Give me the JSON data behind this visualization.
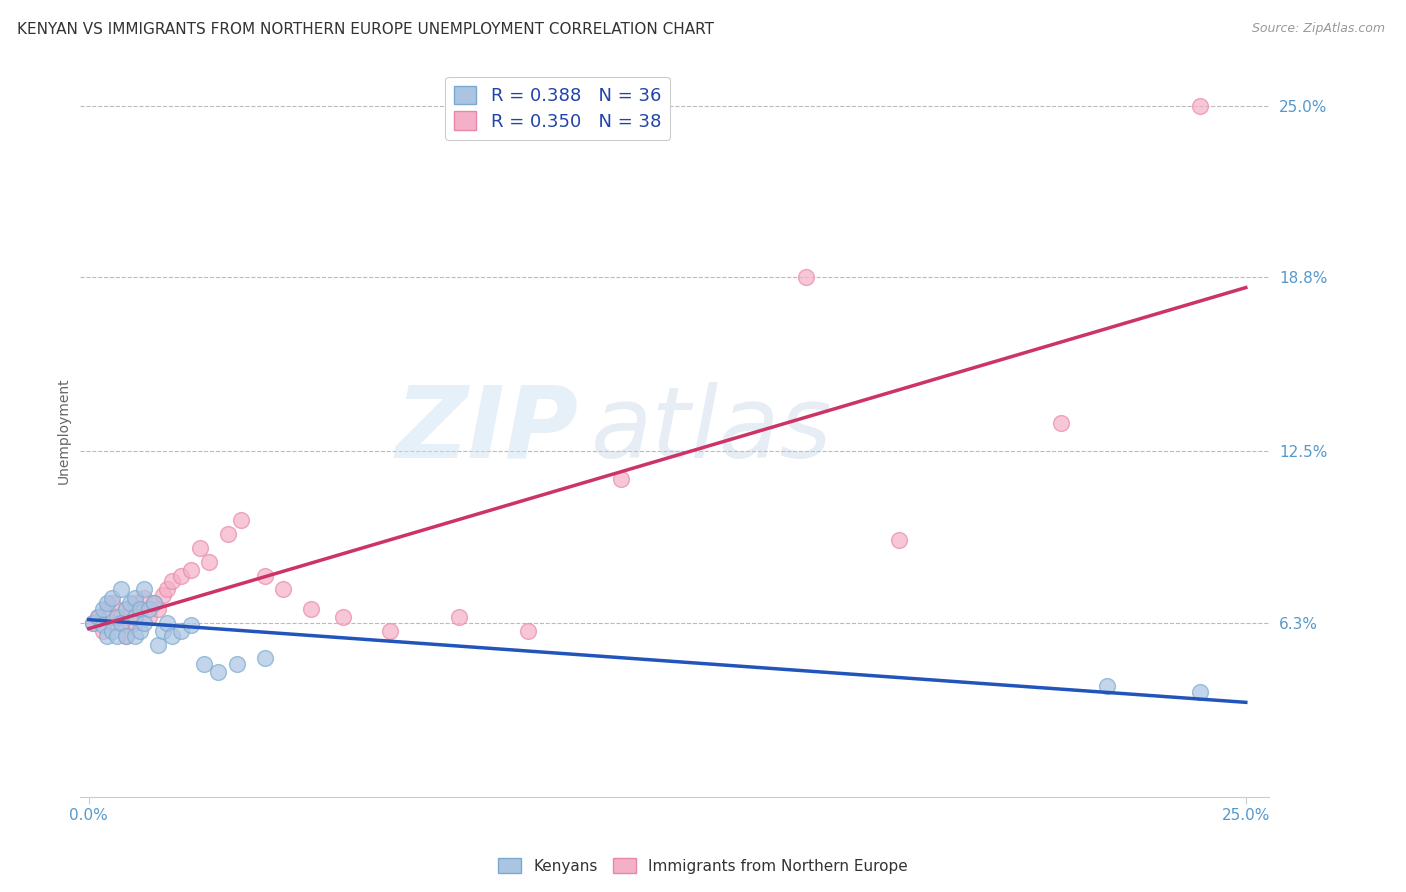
{
  "title": "KENYAN VS IMMIGRANTS FROM NORTHERN EUROPE UNEMPLOYMENT CORRELATION CHART",
  "source": "Source: ZipAtlas.com",
  "ylabel": "Unemployment",
  "xlim": [
    -0.002,
    0.255
  ],
  "ylim": [
    0.0,
    0.265
  ],
  "xtick_positions": [
    0.0,
    0.25
  ],
  "xtick_labels": [
    "0.0%",
    "25.0%"
  ],
  "ytick_vals": [
    0.063,
    0.125,
    0.188,
    0.25
  ],
  "ytick_labels": [
    "6.3%",
    "12.5%",
    "18.8%",
    "25.0%"
  ],
  "watermark_zip": "ZIP",
  "watermark_atlas": "atlas",
  "kenyan_color": "#aac4e2",
  "kenyan_edge": "#7aaad0",
  "immigrant_color": "#f4b0c8",
  "immigrant_edge": "#e888a8",
  "line_blue": "#2255bb",
  "line_pink": "#cc3366",
  "background_color": "#ffffff",
  "grid_color": "#bbbbbb",
  "tick_color": "#5599cc",
  "legend_label_color": "#2244aa",
  "kenyan_x": [
    0.001,
    0.002,
    0.003,
    0.003,
    0.004,
    0.004,
    0.005,
    0.005,
    0.006,
    0.006,
    0.007,
    0.007,
    0.008,
    0.008,
    0.009,
    0.01,
    0.01,
    0.01,
    0.011,
    0.011,
    0.012,
    0.012,
    0.013,
    0.014,
    0.015,
    0.016,
    0.017,
    0.018,
    0.02,
    0.022,
    0.025,
    0.028,
    0.032,
    0.038,
    0.22,
    0.24
  ],
  "kenyan_y": [
    0.063,
    0.065,
    0.068,
    0.062,
    0.07,
    0.058,
    0.072,
    0.06,
    0.065,
    0.058,
    0.075,
    0.063,
    0.068,
    0.058,
    0.07,
    0.072,
    0.065,
    0.058,
    0.068,
    0.06,
    0.075,
    0.063,
    0.068,
    0.07,
    0.055,
    0.06,
    0.063,
    0.058,
    0.06,
    0.062,
    0.048,
    0.045,
    0.048,
    0.05,
    0.04,
    0.038
  ],
  "immigrant_x": [
    0.001,
    0.002,
    0.003,
    0.004,
    0.005,
    0.006,
    0.007,
    0.008,
    0.008,
    0.009,
    0.01,
    0.01,
    0.011,
    0.012,
    0.013,
    0.014,
    0.015,
    0.016,
    0.017,
    0.018,
    0.02,
    0.022,
    0.024,
    0.026,
    0.03,
    0.033,
    0.038,
    0.042,
    0.048,
    0.055,
    0.065,
    0.08,
    0.095,
    0.115,
    0.155,
    0.175,
    0.21,
    0.24
  ],
  "immigrant_y": [
    0.063,
    0.065,
    0.06,
    0.068,
    0.07,
    0.063,
    0.065,
    0.058,
    0.068,
    0.062,
    0.07,
    0.063,
    0.068,
    0.072,
    0.065,
    0.07,
    0.068,
    0.073,
    0.075,
    0.078,
    0.08,
    0.082,
    0.09,
    0.085,
    0.095,
    0.1,
    0.08,
    0.075,
    0.068,
    0.065,
    0.06,
    0.065,
    0.06,
    0.115,
    0.188,
    0.093,
    0.135,
    0.25
  ],
  "title_fontsize": 11,
  "label_fontsize": 10,
  "tick_fontsize": 11,
  "legend_fontsize": 13,
  "watermark_fontsize_zip": 70,
  "watermark_fontsize_atlas": 70,
  "scatter_size": 130,
  "scatter_alpha": 0.7,
  "line_width": 2.5
}
